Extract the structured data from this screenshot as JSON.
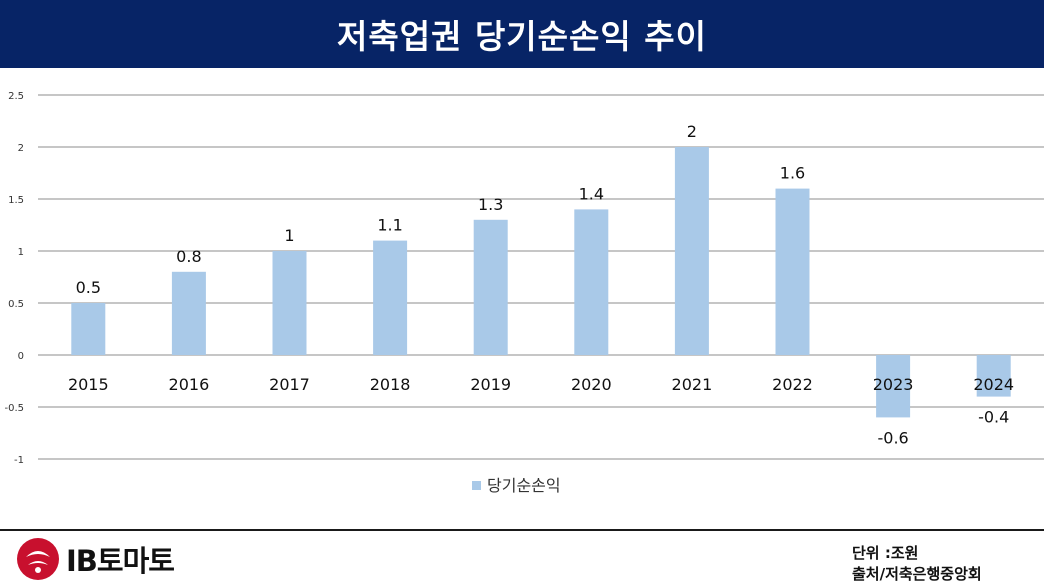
{
  "header": {
    "title": "저축업권 당기순손익 추이"
  },
  "chart_data": {
    "type": "bar",
    "categories": [
      "2015",
      "2016",
      "2017",
      "2018",
      "2019",
      "2020",
      "2021",
      "2022",
      "2023",
      "2024"
    ],
    "series": [
      {
        "name": "당기순손익",
        "values": [
          0.5,
          0.8,
          1,
          1.1,
          1.3,
          1.4,
          2,
          1.6,
          -0.6,
          -0.4
        ],
        "color": "#a9c9e8"
      }
    ],
    "data_labels": [
      "0.5",
      "0.8",
      "1",
      "1.1",
      "1.3",
      "1.4",
      "2",
      "1.6",
      "-0.6",
      "-0.4"
    ],
    "y_ticks": [
      "2.5",
      "2",
      "1.5",
      "1",
      "0.5",
      "0",
      "-0.5",
      "-1"
    ],
    "ylim": [
      -1,
      2.5
    ],
    "grid": true,
    "legend": "bottom-center",
    "title": "",
    "xlabel": "",
    "ylabel": ""
  },
  "footer": {
    "unit_note": "단위 :조원",
    "source_note": "출처/저축은행중앙회",
    "logo_text": "IB토마토"
  },
  "colors": {
    "header_bg": "#072466",
    "bar": "#a9c9e8",
    "grid": "#8c8c8c",
    "logo_red": "#c8102e"
  }
}
